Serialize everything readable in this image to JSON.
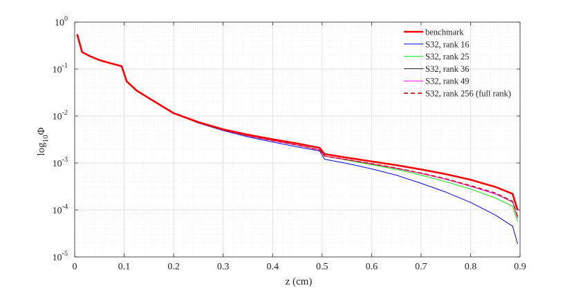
{
  "chart_data": {
    "type": "line",
    "xlabel": "z (cm)",
    "ylabel": {
      "base": "log",
      "sub": "10",
      "symbol": "Φ"
    },
    "xlim": [
      0,
      0.9
    ],
    "ylim": [
      1e-05,
      1
    ],
    "yscale": "log",
    "grid": true,
    "legend_position": "top-right",
    "x_ticks": [
      "0",
      "0.1",
      "0.2",
      "0.3",
      "0.4",
      "0.5",
      "0.6",
      "0.7",
      "0.8",
      "0.9"
    ],
    "y_ticks": [
      {
        "base": "10",
        "exp": "0"
      },
      {
        "base": "10",
        "exp": "-1"
      },
      {
        "base": "10",
        "exp": "-2"
      },
      {
        "base": "10",
        "exp": "-3"
      },
      {
        "base": "10",
        "exp": "-4"
      },
      {
        "base": "10",
        "exp": "-5"
      }
    ],
    "series": [
      {
        "name": "benchmark",
        "color": "#ff0000",
        "width": 2.6,
        "dash": "",
        "x": [
          0.005,
          0.015,
          0.03,
          0.05,
          0.07,
          0.095,
          0.105,
          0.125,
          0.15,
          0.2,
          0.25,
          0.3,
          0.35,
          0.4,
          0.45,
          0.495,
          0.505,
          0.55,
          0.6,
          0.65,
          0.7,
          0.75,
          0.8,
          0.85,
          0.885,
          0.895
        ],
        "y": [
          0.55,
          0.23,
          0.19,
          0.155,
          0.135,
          0.115,
          0.055,
          0.035,
          0.024,
          0.0115,
          0.0074,
          0.0052,
          0.004,
          0.0032,
          0.0026,
          0.0021,
          0.00155,
          0.0013,
          0.00108,
          0.0009,
          0.00073,
          0.00058,
          0.00044,
          0.00031,
          0.00022,
          0.0001
        ]
      },
      {
        "name": "S32, rank 16",
        "color": "#0000ee",
        "width": 1,
        "dash": "",
        "x": [
          0.005,
          0.015,
          0.03,
          0.05,
          0.07,
          0.095,
          0.105,
          0.125,
          0.15,
          0.2,
          0.25,
          0.3,
          0.35,
          0.4,
          0.45,
          0.495,
          0.505,
          0.55,
          0.6,
          0.65,
          0.7,
          0.75,
          0.8,
          0.85,
          0.885,
          0.895
        ],
        "y": [
          0.55,
          0.23,
          0.19,
          0.155,
          0.135,
          0.115,
          0.055,
          0.035,
          0.024,
          0.0113,
          0.0071,
          0.0049,
          0.0036,
          0.0028,
          0.0022,
          0.0018,
          0.0012,
          0.00098,
          0.00075,
          0.00055,
          0.00037,
          0.00024,
          0.000145,
          7.8e-05,
          4.5e-05,
          1.9e-05
        ]
      },
      {
        "name": "S32, rank 25",
        "color": "#00ee00",
        "width": 1,
        "dash": "",
        "x": [
          0.005,
          0.015,
          0.03,
          0.05,
          0.07,
          0.095,
          0.105,
          0.125,
          0.15,
          0.2,
          0.25,
          0.3,
          0.35,
          0.4,
          0.45,
          0.495,
          0.505,
          0.55,
          0.6,
          0.65,
          0.7,
          0.75,
          0.8,
          0.85,
          0.885,
          0.895
        ],
        "y": [
          0.55,
          0.23,
          0.19,
          0.155,
          0.135,
          0.115,
          0.055,
          0.035,
          0.024,
          0.0114,
          0.0073,
          0.0051,
          0.0038,
          0.003,
          0.0024,
          0.0019,
          0.0014,
          0.00115,
          0.00092,
          0.00073,
          0.00055,
          0.0004,
          0.00028,
          0.00018,
          0.00012,
          5.7e-05
        ]
      },
      {
        "name": "S32, rank 36",
        "color": "#222222",
        "width": 1,
        "dash": "",
        "x": [
          0.005,
          0.015,
          0.03,
          0.05,
          0.07,
          0.095,
          0.105,
          0.125,
          0.15,
          0.2,
          0.25,
          0.3,
          0.35,
          0.4,
          0.45,
          0.495,
          0.505,
          0.55,
          0.6,
          0.65,
          0.7,
          0.75,
          0.8,
          0.85,
          0.885,
          0.895
        ],
        "y": [
          0.55,
          0.23,
          0.19,
          0.155,
          0.135,
          0.115,
          0.055,
          0.035,
          0.024,
          0.0114,
          0.0073,
          0.0051,
          0.0038,
          0.003,
          0.0024,
          0.0019,
          0.0014,
          0.00118,
          0.00096,
          0.00077,
          0.0006,
          0.00045,
          0.00032,
          0.00022,
          0.000148,
          6.8e-05
        ]
      },
      {
        "name": "S32, rank 49",
        "color": "#ff00ff",
        "width": 1,
        "dash": "",
        "x": [
          0.005,
          0.015,
          0.03,
          0.05,
          0.07,
          0.095,
          0.105,
          0.125,
          0.15,
          0.2,
          0.25,
          0.3,
          0.35,
          0.4,
          0.45,
          0.495,
          0.505,
          0.55,
          0.6,
          0.65,
          0.7,
          0.75,
          0.8,
          0.85,
          0.885,
          0.895
        ],
        "y": [
          0.55,
          0.23,
          0.19,
          0.155,
          0.135,
          0.115,
          0.055,
          0.035,
          0.024,
          0.0114,
          0.0073,
          0.0051,
          0.0038,
          0.003,
          0.0024,
          0.0019,
          0.0014,
          0.00118,
          0.00096,
          0.00077,
          0.0006,
          0.00045,
          0.00032,
          0.00022,
          0.00015,
          7e-05
        ]
      },
      {
        "name": "S32, rank 256 (full rank)",
        "color": "#dd1111",
        "width": 1.7,
        "dash": "6,4",
        "x": [
          0.005,
          0.015,
          0.03,
          0.05,
          0.07,
          0.095,
          0.105,
          0.125,
          0.15,
          0.2,
          0.25,
          0.3,
          0.35,
          0.4,
          0.45,
          0.495,
          0.505,
          0.55,
          0.6,
          0.65,
          0.7,
          0.75,
          0.8,
          0.85,
          0.885,
          0.895
        ],
        "y": [
          0.55,
          0.23,
          0.19,
          0.155,
          0.135,
          0.115,
          0.055,
          0.035,
          0.024,
          0.0114,
          0.0073,
          0.0051,
          0.0038,
          0.003,
          0.0024,
          0.0019,
          0.0014,
          0.00118,
          0.00097,
          0.00078,
          0.00061,
          0.00046,
          0.00033,
          0.00023,
          0.000152,
          7.2e-05
        ]
      }
    ]
  }
}
